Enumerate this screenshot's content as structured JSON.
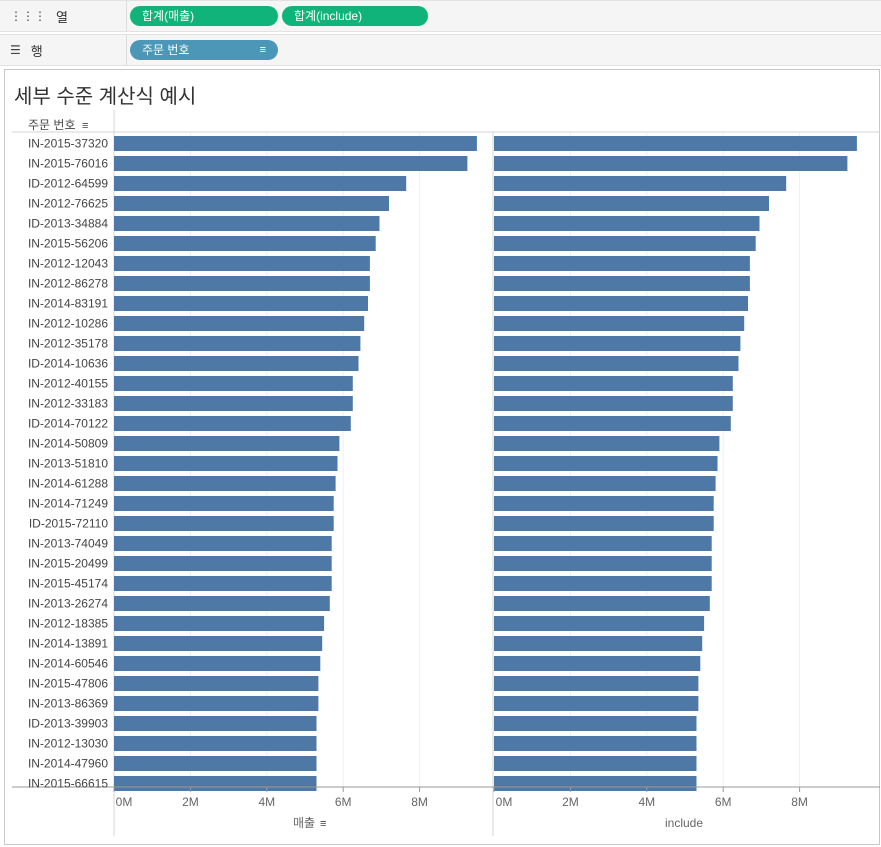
{
  "shelves": {
    "columns": {
      "label": "열",
      "icon": "columns-icon",
      "pills": [
        "합계(매출)",
        "합계(include)"
      ]
    },
    "rows": {
      "label": "행",
      "icon": "rows-list-icon",
      "pills": [
        "주문 번호"
      ]
    }
  },
  "sheet": {
    "title": "세부 수준 계산식 예시"
  },
  "colors": {
    "bar": "#4e79a7",
    "pill_measure": "#10b37a",
    "pill_dimension": "#4c97b8"
  },
  "chart_data": {
    "type": "bar",
    "orientation": "horizontal",
    "row_header": "주문 번호",
    "categories": [
      "IN-2015-37320",
      "IN-2015-76016",
      "ID-2012-64599",
      "IN-2012-76625",
      "ID-2013-34884",
      "IN-2015-56206",
      "IN-2012-12043",
      "IN-2012-86278",
      "IN-2014-83191",
      "IN-2012-10286",
      "IN-2012-35178",
      "ID-2014-10636",
      "IN-2012-40155",
      "IN-2012-33183",
      "ID-2014-70122",
      "IN-2014-50809",
      "IN-2013-51810",
      "IN-2014-61288",
      "IN-2014-71249",
      "ID-2015-72110",
      "IN-2013-74049",
      "IN-2015-20499",
      "IN-2015-45174",
      "IN-2013-26274",
      "IN-2012-18385",
      "IN-2014-13891",
      "IN-2014-60546",
      "IN-2015-47806",
      "IN-2013-86369",
      "ID-2013-39903",
      "IN-2012-13030",
      "IN-2014-47960",
      "IN-2015-66615"
    ],
    "series": [
      {
        "name": "매출",
        "values": [
          9.5,
          9.25,
          7.65,
          7.2,
          6.95,
          6.85,
          6.7,
          6.7,
          6.65,
          6.55,
          6.45,
          6.4,
          6.25,
          6.25,
          6.2,
          5.9,
          5.85,
          5.8,
          5.75,
          5.75,
          5.7,
          5.7,
          5.7,
          5.65,
          5.5,
          5.45,
          5.4,
          5.35,
          5.35,
          5.3,
          5.3,
          5.3,
          5.3
        ]
      },
      {
        "name": "include",
        "values": [
          9.5,
          9.25,
          7.65,
          7.2,
          6.95,
          6.85,
          6.7,
          6.7,
          6.65,
          6.55,
          6.45,
          6.4,
          6.25,
          6.25,
          6.2,
          5.9,
          5.85,
          5.8,
          5.75,
          5.75,
          5.7,
          5.7,
          5.7,
          5.65,
          5.5,
          5.45,
          5.4,
          5.35,
          5.35,
          5.3,
          5.3,
          5.3,
          5.3
        ]
      }
    ],
    "x_ticks": [
      "0M",
      "2M",
      "4M",
      "6M",
      "8M"
    ],
    "x_tick_values": [
      0,
      2,
      4,
      6,
      8
    ],
    "xlim": [
      0,
      10
    ],
    "unit": "M",
    "grid": true
  }
}
